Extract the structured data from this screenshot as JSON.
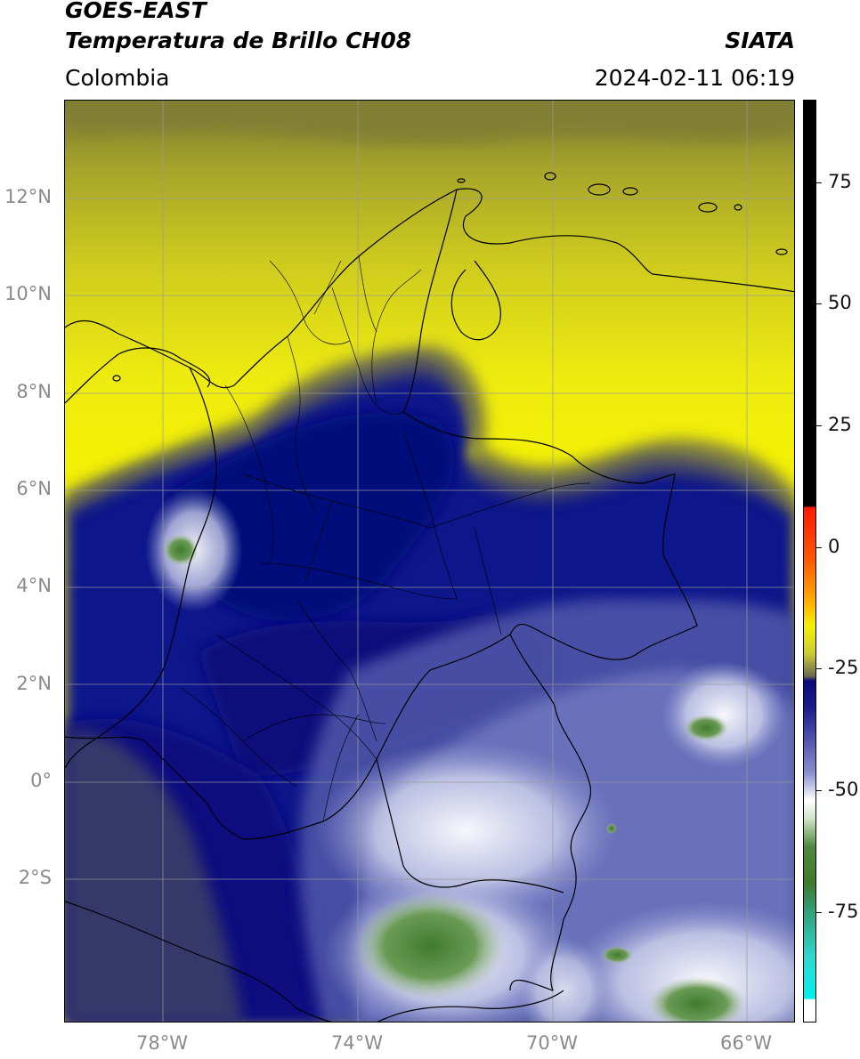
{
  "header": {
    "title": "GOES-EAST",
    "subtitle": "Temperatura de Brillo CH08",
    "org": "SIATA",
    "region": "Colombia",
    "datetime": "2024-02-11 06:19"
  },
  "map": {
    "lat_labels": [
      "12°N",
      "10°N",
      "8°N",
      "6°N",
      "4°N",
      "2°N",
      "0°",
      "2°S"
    ],
    "lon_labels": [
      "78°W",
      "74°W",
      "70°W",
      "66°W"
    ],
    "extent": {
      "lon_min": -80,
      "lon_max": -65,
      "lat_min": -5,
      "lat_max": 14
    },
    "colors": {
      "warm_yellow": "#e6e21a",
      "olive": "#7f7d34",
      "navy": "#0a0f82",
      "slate": "#5a60a8",
      "lavender": "#b7bce0",
      "cold_green": "#4f8f3f",
      "grid": "#9a9a9a"
    }
  },
  "colorbar": {
    "tick_labels": [
      "75",
      "50",
      "25",
      "0",
      "-25",
      "-50",
      "-75"
    ],
    "tick_values": [
      75,
      50,
      25,
      0,
      -25,
      -50,
      -75
    ],
    "range": [
      -95,
      90
    ],
    "units": ""
  }
}
